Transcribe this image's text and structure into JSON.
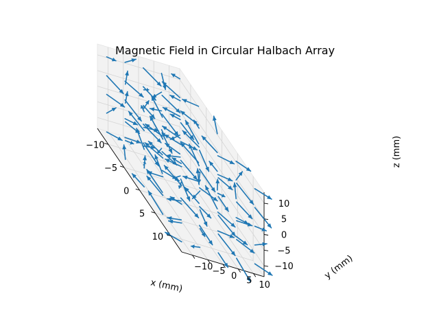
{
  "chart_data": {
    "type": "quiver3d",
    "title": "Magnetic Field in Circular Halbach Array",
    "xlabel": "x (mm)",
    "ylabel": "y (mm)",
    "zlabel": "z (mm)",
    "xlim": [
      -13.5,
      13.5
    ],
    "ylim": [
      -13.5,
      13.5
    ],
    "zlim": [
      -13.5,
      13.5
    ],
    "xticks": [
      -10,
      -5,
      0,
      5,
      10
    ],
    "yticks": [
      -10,
      -5,
      0,
      5,
      10
    ],
    "zticks": [
      -10,
      -5,
      0,
      5,
      10
    ],
    "xtick_labels": [
      "−10",
      "−5",
      "0",
      "5",
      "10"
    ],
    "ytick_labels": [
      "−10",
      "−5",
      "0",
      "5",
      "10"
    ],
    "ztick_labels": [
      "−10",
      "−5",
      "0",
      "5",
      "10"
    ],
    "grid": true,
    "pane_color": "#f2f2f2",
    "arrow_color": "#1f77b4",
    "view": {
      "elevation_deg": 30,
      "azimuth_deg": -60
    },
    "grid_points_per_axis": [
      -12,
      -6,
      0,
      6,
      12
    ],
    "arrow_length_mm": 4.2
  }
}
